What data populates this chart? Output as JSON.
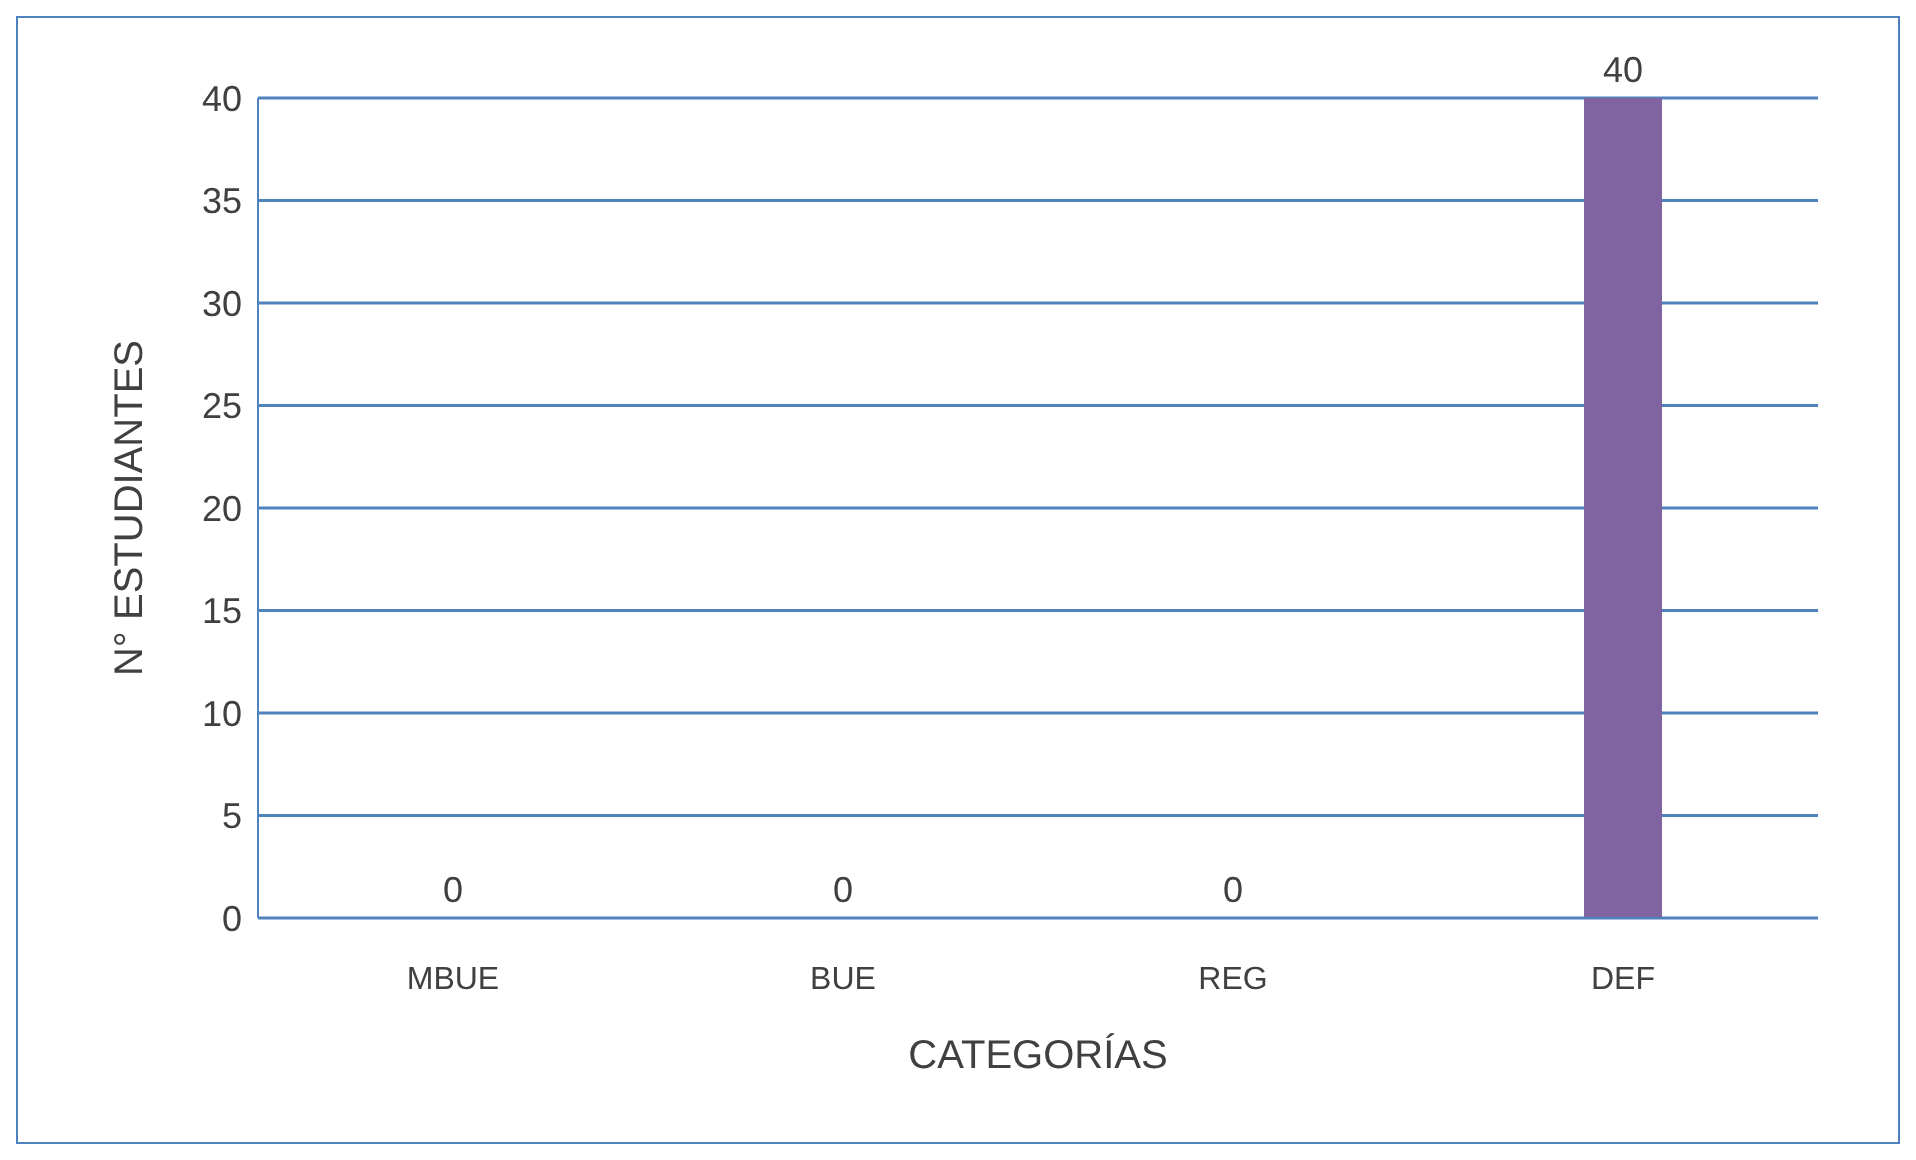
{
  "chart_data": {
    "type": "bar",
    "xlabel": "CATEGORÍAS",
    "ylabel": "N° ESTUDIANTES",
    "categories": [
      "MBUE",
      "BUE",
      "REG",
      "DEF"
    ],
    "values": [
      0,
      0,
      0,
      40
    ],
    "colors": [
      "#3a5f8f",
      "#953735",
      "#76923c",
      "#8064a2"
    ],
    "ylim": [
      0,
      40
    ],
    "yticks": [
      0,
      5,
      10,
      15,
      20,
      25,
      30,
      35,
      40
    ],
    "grid": "y",
    "data_labels": true
  }
}
